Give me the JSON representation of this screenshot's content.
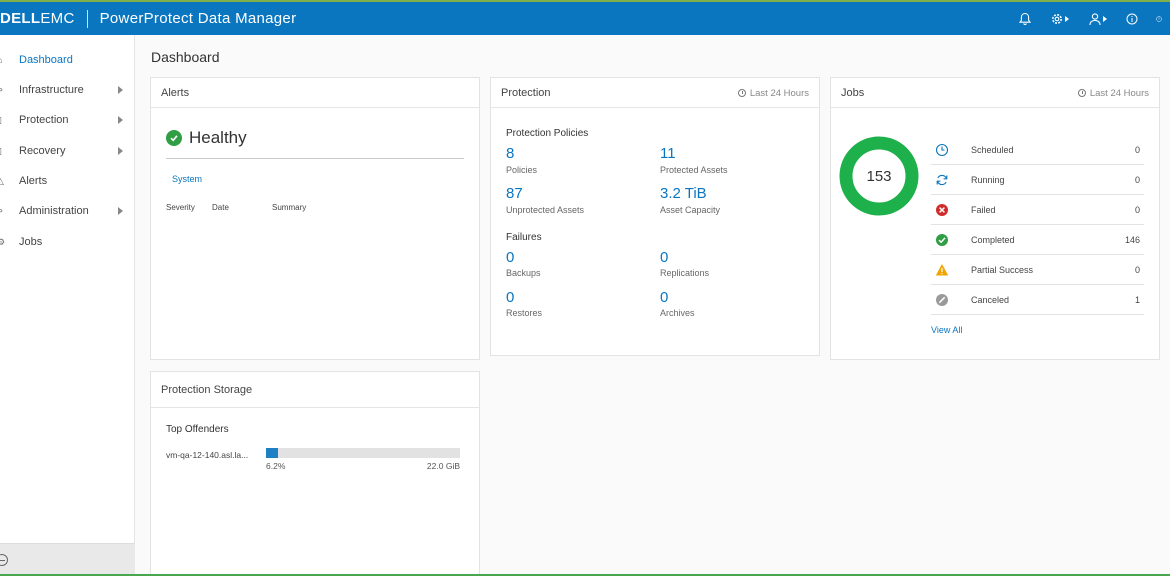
{
  "header": {
    "brand_dell": "DELL",
    "brand_emc": "EMC",
    "product": "PowerProtect Data Manager",
    "icons": [
      "bell-icon",
      "gear-icon",
      "user-icon",
      "info-icon",
      "help-icon"
    ]
  },
  "sidebar": {
    "items": [
      {
        "label": "Dashboard",
        "icon": "home-icon",
        "has_arrow": false,
        "active": true
      },
      {
        "label": "Infrastructure",
        "icon": "infrastructure-icon",
        "has_arrow": true,
        "active": false
      },
      {
        "label": "Protection",
        "icon": "shield-icon",
        "has_arrow": true,
        "active": false
      },
      {
        "label": "Recovery",
        "icon": "recovery-icon",
        "has_arrow": true,
        "active": false
      },
      {
        "label": "Alerts",
        "icon": "alert-triangle-icon",
        "has_arrow": false,
        "active": false
      },
      {
        "label": "Administration",
        "icon": "wrench-icon",
        "has_arrow": true,
        "active": false
      },
      {
        "label": "Jobs",
        "icon": "gear-icon",
        "has_arrow": false,
        "active": false
      }
    ]
  },
  "page": {
    "title": "Dashboard"
  },
  "alerts": {
    "title": "Alerts",
    "status": "Healthy",
    "tab": "System",
    "columns": [
      "Severity",
      "Date",
      "Summary"
    ]
  },
  "protection": {
    "title": "Protection",
    "timeframe": "Last 24 Hours",
    "policies_title": "Protection Policies",
    "policies": {
      "value": "8",
      "label": "Policies"
    },
    "protected_assets": {
      "value": "11",
      "label": "Protected Assets"
    },
    "unprotected_assets": {
      "value": "87",
      "label": "Unprotected Assets"
    },
    "asset_capacity": {
      "value": "3.2 TiB",
      "label": "Asset Capacity"
    },
    "failures_title": "Failures",
    "backups": {
      "value": "0",
      "label": "Backups"
    },
    "replications": {
      "value": "0",
      "label": "Replications"
    },
    "restores": {
      "value": "0",
      "label": "Restores"
    },
    "archives": {
      "value": "0",
      "label": "Archives"
    }
  },
  "jobs": {
    "title": "Jobs",
    "timeframe": "Last 24 Hours",
    "total": "153",
    "rows": [
      {
        "label": "Scheduled",
        "count": "0",
        "icon": "clock-icon",
        "color": "#0a76c0"
      },
      {
        "label": "Running",
        "count": "0",
        "icon": "refresh-icon",
        "color": "#0a76c0"
      },
      {
        "label": "Failed",
        "count": "0",
        "icon": "error-icon",
        "color": "#d12c2c"
      },
      {
        "label": "Completed",
        "count": "146",
        "icon": "check-icon",
        "color": "#2f9e44"
      },
      {
        "label": "Partial Success",
        "count": "0",
        "icon": "warning-icon",
        "color": "#f0a500"
      },
      {
        "label": "Canceled",
        "count": "1",
        "icon": "cancel-icon",
        "color": "#9a9a9a"
      }
    ],
    "view_all": "View All",
    "donut_color": "#1db04b"
  },
  "storage": {
    "title": "Protection Storage",
    "offenders_title": "Top Offenders",
    "offender": {
      "name": "vm-qa-12-140.asl.la...",
      "percent": "6.2%",
      "fraction": 0.062,
      "capacity": "22.0 GiB"
    }
  },
  "colors": {
    "accent": "#0a76c0",
    "success": "#2f9e44"
  }
}
